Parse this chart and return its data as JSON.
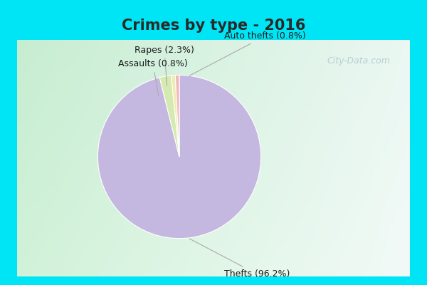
{
  "title": "Crimes by type - 2016",
  "slices": [
    {
      "label": "Thefts (96.2%)",
      "value": 96.2,
      "color": "#c5b8e0"
    },
    {
      "label": "Rapes (2.3%)",
      "value": 2.3,
      "color": "#d4eab0"
    },
    {
      "label": "Auto thefts (0.8%)",
      "value": 0.8,
      "color": "#f0ebb0"
    },
    {
      "label": "Assaults (0.8%)",
      "value": 0.8,
      "color": "#f2b8b8"
    }
  ],
  "cyan_color": "#00e5f5",
  "bg_color_topleft": "#c8e8d0",
  "bg_color_right": "#e8f5f0",
  "title_fontsize": 15,
  "label_fontsize": 9,
  "title_color": "#2a2a2a",
  "label_color": "#1a1a1a",
  "watermark_color": "#b0c8d0",
  "watermark_text": "City-Data.com"
}
